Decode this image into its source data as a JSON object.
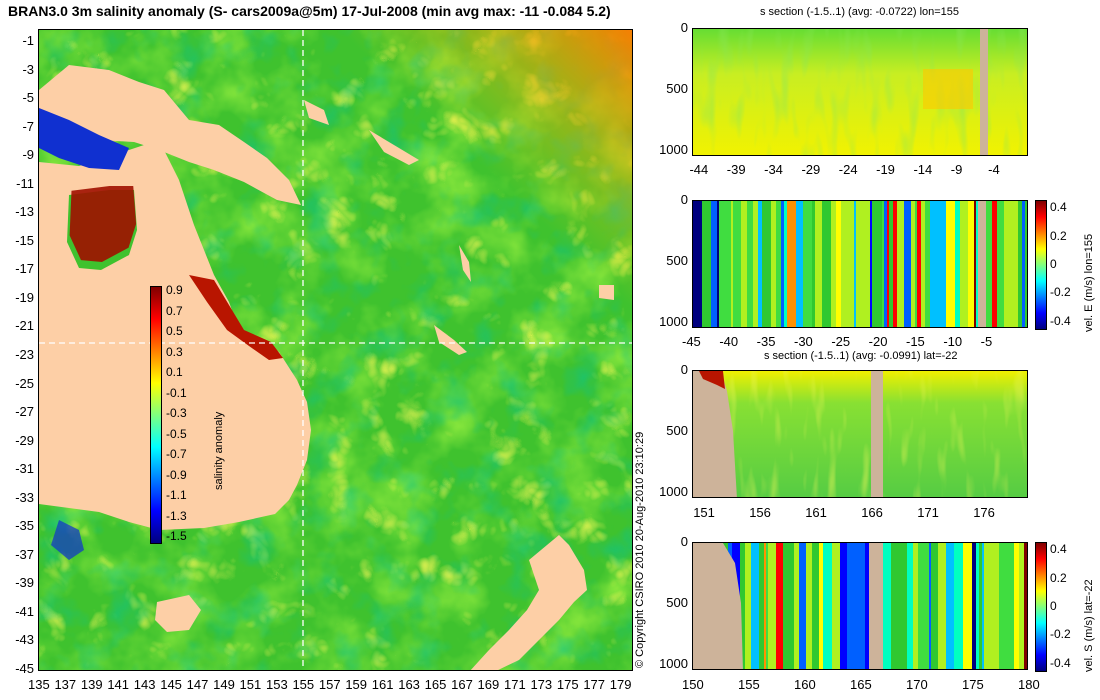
{
  "main_title": "BRAN3.0 3m salinity anomaly (S- cars2009a@5m) 17-Jul-2008 (min avg max: -11 -0.084 5.2)",
  "copyright": "© Copyright CSIRO 2010   20-Aug-2010 23:10:29",
  "colors": {
    "land": "#fdcfa6",
    "section_land": "#cdb39a",
    "ocean_base": "#40c030",
    "anomaly_scale": [
      "#00007f",
      "#0000ff",
      "#007fff",
      "#00ffff",
      "#7fff7f",
      "#ffff00",
      "#ff7f00",
      "#ff0000",
      "#7f0000"
    ]
  },
  "chart_data": [
    {
      "type": "heatmap",
      "id": "map",
      "title": "BRAN3.0 3m salinity anomaly (S- cars2009a@5m) 17-Jul-2008 (min avg max: -11 -0.084 5.2)",
      "xlim": [
        135,
        180
      ],
      "ylim": [
        -45,
        0
      ],
      "x_ticks": [
        "135",
        "137",
        "139",
        "141",
        "143",
        "145",
        "147",
        "149",
        "151",
        "153",
        "155",
        "157",
        "159",
        "161",
        "163",
        "165",
        "167",
        "169",
        "171",
        "173",
        "175",
        "177",
        "179"
      ],
      "y_ticks": [
        "-1",
        "-3",
        "-5",
        "-7",
        "-9",
        "-11",
        "-13",
        "-15",
        "-17",
        "-19",
        "-21",
        "-23",
        "-25",
        "-27",
        "-29",
        "-31",
        "-33",
        "-35",
        "-37",
        "-39",
        "-41",
        "-43",
        "-45"
      ],
      "crosshair": {
        "lon": 155,
        "lat": -22
      },
      "colorbar": {
        "label": "salinity anomaly",
        "range": [
          -1.5,
          1.0
        ],
        "ticks": [
          "0.9",
          "0.7",
          "0.5",
          "0.3",
          "0.1",
          "-0.1",
          "-0.3",
          "-0.5",
          "-0.7",
          "-0.9",
          "-1.1",
          "-1.3",
          "-1.5"
        ]
      }
    },
    {
      "type": "heatmap",
      "id": "sec1",
      "title": "s section (-1.5..1) (avg: -0.0722) lon=155",
      "x_ticks": [
        "-44",
        "-39",
        "-34",
        "-29",
        "-24",
        "-19",
        "-14",
        "-9",
        "-4"
      ],
      "y_ticks": [
        "0",
        "500",
        "1000"
      ],
      "xlim": [
        -45,
        0
      ],
      "ylim": [
        1050,
        0
      ]
    },
    {
      "type": "heatmap",
      "id": "sec2",
      "title": "",
      "x_ticks": [
        "-45",
        "-40",
        "-35",
        "-30",
        "-25",
        "-20",
        "-15",
        "-10",
        "-5"
      ],
      "y_ticks": [
        "0",
        "500",
        "1000"
      ],
      "xlim": [
        -45,
        0
      ],
      "ylim": [
        1050,
        0
      ],
      "colorbar": {
        "label": "vel. E (m/s) lon=155",
        "ticks": [
          "0.4",
          "0.2",
          "0",
          "-0.2",
          "-0.4"
        ],
        "range": [
          -0.45,
          0.45
        ]
      }
    },
    {
      "type": "heatmap",
      "id": "sec3",
      "title": "s section (-1.5..1) (avg: -0.0991) lat=-22",
      "x_ticks": [
        "151",
        "156",
        "161",
        "166",
        "171",
        "176"
      ],
      "y_ticks": [
        "0",
        "500",
        "1000"
      ],
      "xlim": [
        150,
        180
      ],
      "ylim": [
        1050,
        0
      ]
    },
    {
      "type": "heatmap",
      "id": "sec4",
      "title": "",
      "x_ticks": [
        "150",
        "155",
        "160",
        "165",
        "170",
        "175",
        "180"
      ],
      "y_ticks": [
        "0",
        "500",
        "1000"
      ],
      "xlim": [
        150,
        180
      ],
      "ylim": [
        1050,
        0
      ],
      "colorbar": {
        "label": "vel. S (m/s) lat=-22",
        "ticks": [
          "0.4",
          "0.2",
          "0",
          "-0.2",
          "-0.4"
        ],
        "range": [
          -0.45,
          0.45
        ]
      }
    }
  ]
}
